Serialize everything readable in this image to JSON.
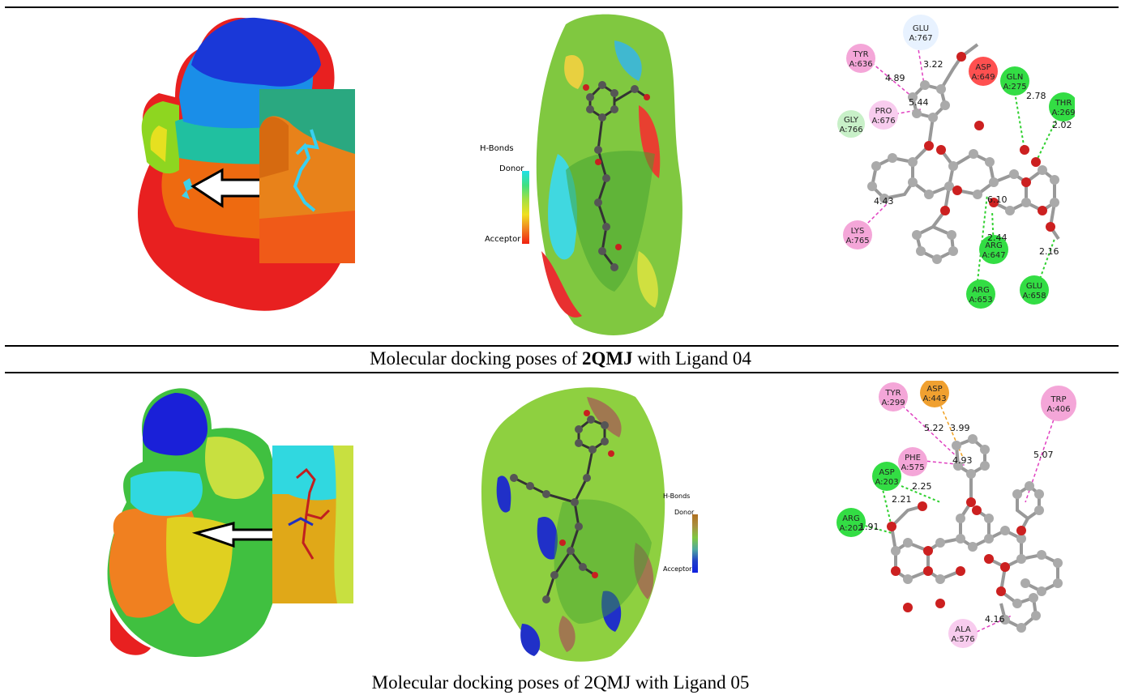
{
  "captions": {
    "row1_prefix": "Molecular docking poses of ",
    "row1_bold": "2QMJ",
    "row1_suffix": " with Ligand 04",
    "row2": "Molecular docking poses of 2QMJ with Ligand 05"
  },
  "legend1": {
    "title": "H-Bonds",
    "top": "Donor",
    "bottom": "Acceptor"
  },
  "legend2": {
    "title": "H-Bonds",
    "top": "Donor",
    "bottom": "Acceptor"
  },
  "interactions1": {
    "residues": [
      {
        "name": "GLU",
        "id": "A:767",
        "color": "#e8f2ff"
      },
      {
        "name": "TYR",
        "id": "A:636",
        "color": "#f4a6d8"
      },
      {
        "name": "ASP",
        "id": "A:649",
        "color": "#ff5050"
      },
      {
        "name": "GLN",
        "id": "A:275",
        "color": "#33dd44"
      },
      {
        "name": "THR",
        "id": "A:269",
        "color": "#33dd44"
      },
      {
        "name": "GLY",
        "id": "A:766",
        "color": "#c8f0c8"
      },
      {
        "name": "PRO",
        "id": "A:676",
        "color": "#f8ccee"
      },
      {
        "name": "LYS",
        "id": "A:765",
        "color": "#f4a6d8"
      },
      {
        "name": "ARG",
        "id": "A:647",
        "color": "#33dd44"
      },
      {
        "name": "ARG",
        "id": "A:653",
        "color": "#33dd44"
      },
      {
        "name": "GLU",
        "id": "A:658",
        "color": "#33dd44"
      }
    ],
    "distances": [
      "3.22",
      "4.89",
      "5.44",
      "2.78",
      "2.02",
      "4.43",
      "6.10",
      "2.44",
      "2.16"
    ]
  },
  "interactions2": {
    "residues": [
      {
        "name": "TYR",
        "id": "A:299",
        "color": "#f4a6d8"
      },
      {
        "name": "ASP",
        "id": "A:443",
        "color": "#f0a030"
      },
      {
        "name": "TRP",
        "id": "A:406",
        "color": "#f4a6d8"
      },
      {
        "name": "PHE",
        "id": "A:575",
        "color": "#f4a6d8"
      },
      {
        "name": "ASP",
        "id": "A:203",
        "color": "#33dd44"
      },
      {
        "name": "ARG",
        "id": "A:202",
        "color": "#33dd44"
      },
      {
        "name": "ALA",
        "id": "A:576",
        "color": "#f8ccee"
      }
    ],
    "distances": [
      "5.22",
      "3.99",
      "4.93",
      "5.07",
      "2.25",
      "2.21",
      "1.91",
      "4.16"
    ]
  }
}
